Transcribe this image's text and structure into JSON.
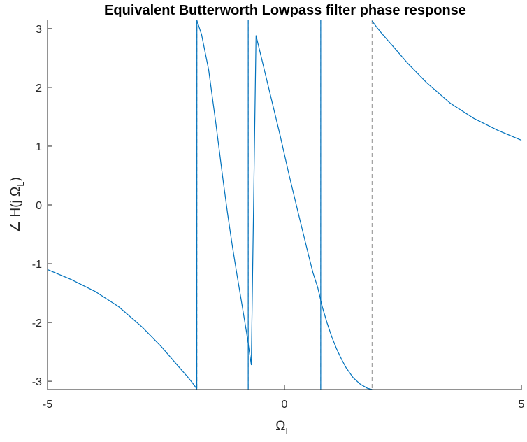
{
  "chart_data": {
    "type": "line",
    "title": "Equivalent Butterworth Lowpass filter phase response",
    "xlabel": {
      "symbol": "Ω",
      "subscript": "L"
    },
    "ylabel": {
      "prefix": "∠ H(j Ω",
      "subscript": "L",
      "suffix": ")"
    },
    "xlim": [
      -5,
      5
    ],
    "ylim": [
      -3.1416,
      3.1416
    ],
    "x_ticks": [
      -5,
      0,
      5
    ],
    "x_tick_labels": [
      "-5",
      "0",
      "5"
    ],
    "y_ticks": [
      -3,
      -2,
      -1,
      0,
      1,
      2,
      3
    ],
    "y_tick_labels": [
      "-3",
      "-2",
      "-1",
      "0",
      "1",
      "2",
      "3"
    ],
    "grid": false,
    "colors": {
      "line": "#0072BD",
      "discontinuity": "#8c8c8c",
      "axes": "#262626"
    },
    "series": [
      {
        "x": [
          -5.0,
          -4.5,
          -4.0,
          -3.5,
          -3.0,
          -2.6,
          -2.3,
          -2.05,
          -1.95,
          -1.85,
          -1.848
        ],
        "y": [
          -1.1,
          -1.27,
          -1.47,
          -1.73,
          -2.08,
          -2.41,
          -2.69,
          -2.92,
          -3.02,
          -3.13,
          3.14
        ]
      },
      {
        "x": [
          -1.848,
          -1.75,
          -1.6,
          -1.45,
          -1.3,
          -1.2,
          -1.1,
          -1.0,
          -0.9,
          -0.8,
          -0.7,
          -0.6,
          -0.5,
          -0.3,
          -0.1,
          0.1,
          0.3,
          0.5,
          0.6,
          0.7,
          0.8,
          0.9,
          1.0,
          1.1,
          1.2,
          1.3,
          1.45,
          1.6,
          1.75,
          1.848
        ],
        "y": [
          3.14,
          2.9,
          2.3,
          1.4,
          0.45,
          -0.15,
          -0.7,
          -1.2,
          -1.68,
          -2.17,
          -2.72,
          2.88,
          2.55,
          1.88,
          1.21,
          0.5,
          -0.17,
          -0.83,
          -1.15,
          -1.4,
          -1.74,
          -2.01,
          -2.25,
          -2.45,
          -2.62,
          -2.77,
          -2.94,
          -3.05,
          -3.12,
          -3.14
        ]
      },
      {
        "x": [
          1.848,
          1.95,
          2.05,
          2.3,
          2.6,
          3.0,
          3.5,
          4.0,
          4.5,
          5.0
        ],
        "y": [
          3.13,
          3.02,
          2.92,
          2.69,
          2.41,
          2.08,
          1.73,
          1.47,
          1.27,
          1.1
        ]
      }
    ],
    "discontinuities_x": [
      -1.848,
      -0.765,
      0.765,
      1.848
    ],
    "vertical_segments_x": [
      -0.765,
      0.765
    ]
  }
}
